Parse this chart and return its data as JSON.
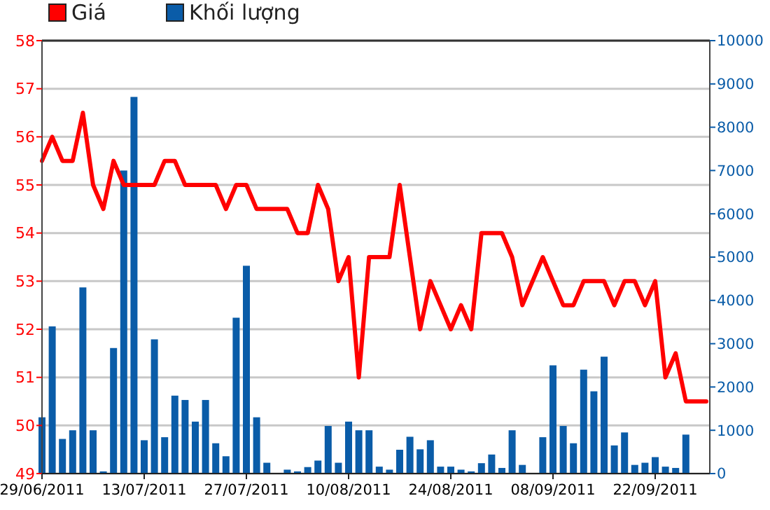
{
  "chart_data": {
    "type": "bar",
    "categories": [
      "29/06/2011",
      null,
      null,
      null,
      null,
      null,
      null,
      null,
      null,
      null,
      "13/07/2011",
      null,
      null,
      null,
      null,
      null,
      null,
      null,
      null,
      null,
      "27/07/2011",
      null,
      null,
      null,
      null,
      null,
      null,
      null,
      null,
      null,
      "10/08/2011",
      null,
      null,
      null,
      null,
      null,
      null,
      null,
      null,
      null,
      "24/08/2011",
      null,
      null,
      null,
      null,
      null,
      null,
      null,
      null,
      null,
      "08/09/2011",
      null,
      null,
      null,
      null,
      null,
      null,
      null,
      null,
      null,
      "22/09/2011",
      null,
      null,
      null,
      null,
      null
    ],
    "series": [
      {
        "name": "Giá",
        "type": "line",
        "color": "#ff0000",
        "values": [
          55.5,
          56,
          55.5,
          55.5,
          56.5,
          55,
          54.5,
          55.5,
          55,
          55,
          55,
          55,
          55.5,
          55.5,
          55,
          55,
          55,
          55,
          54.5,
          55,
          55,
          54.5,
          54.5,
          54.5,
          54.5,
          54,
          54,
          55,
          54.5,
          53,
          53.5,
          51,
          53.5,
          53.5,
          53.5,
          55,
          53.5,
          52,
          53,
          52.5,
          52,
          52.5,
          52,
          54,
          54,
          54,
          53.5,
          52.5,
          53,
          53.5,
          53,
          52.5,
          52.5,
          53,
          53,
          53,
          52.5,
          53,
          53,
          52.5,
          53,
          51,
          51.5,
          50.5,
          50.5,
          50.5
        ]
      },
      {
        "name": "Khối lượng",
        "axis": "y2",
        "color": "#0a5ca8",
        "values": [
          1300,
          3400,
          800,
          1000,
          4300,
          1000,
          50,
          2900,
          7000,
          8700,
          770,
          3100,
          840,
          1800,
          1700,
          1200,
          1700,
          700,
          400,
          3600,
          4800,
          1300,
          250,
          null,
          90,
          50,
          150,
          300,
          1100,
          250,
          1200,
          1000,
          1000,
          160,
          90,
          550,
          850,
          560,
          770,
          160,
          160,
          90,
          50,
          240,
          440,
          130,
          1000,
          200,
          null,
          840,
          2500,
          1100,
          700,
          2400,
          1900,
          2700,
          650,
          950,
          200,
          250,
          380,
          160,
          130,
          900,
          null,
          null
        ]
      }
    ],
    "ylim": [
      49,
      58
    ],
    "yticks": [
      49,
      50,
      51,
      52,
      53,
      54,
      55,
      56,
      57,
      58
    ],
    "y2lim": [
      0,
      10000
    ],
    "y2ticks": [
      0,
      1000,
      2000,
      3000,
      4000,
      5000,
      6000,
      7000,
      8000,
      9000,
      10000
    ],
    "grid": "y",
    "legend": "top left",
    "marker": "none",
    "line_style": "solid"
  }
}
